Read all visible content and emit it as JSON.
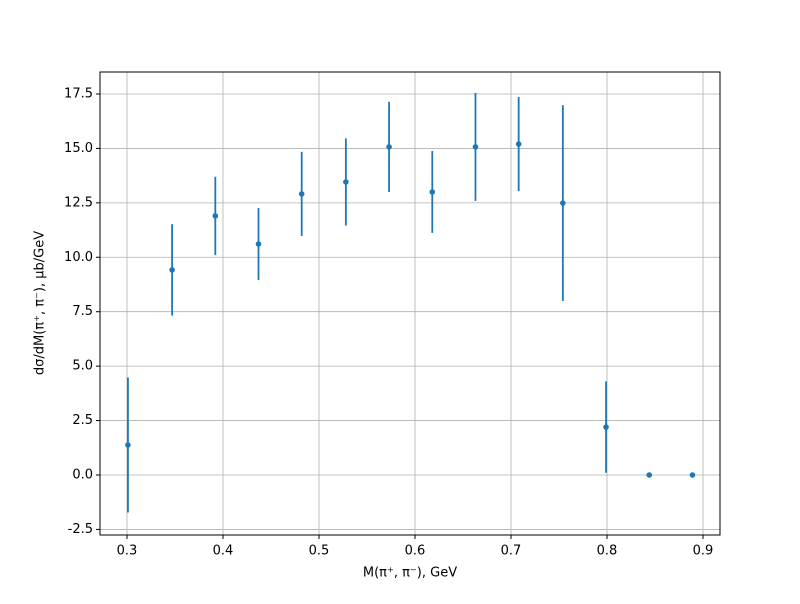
{
  "chart_data": {
    "type": "errorbar",
    "xlabel": "M(π⁺, π⁻), GeV",
    "ylabel": "dσ/dM(π⁺, π⁻), μb/GeV",
    "x": [
      0.301,
      0.347,
      0.392,
      0.437,
      0.482,
      0.528,
      0.573,
      0.618,
      0.663,
      0.708,
      0.754,
      0.799,
      0.844,
      0.889
    ],
    "values": [
      1.38,
      9.42,
      11.9,
      10.61,
      12.91,
      13.46,
      15.07,
      13.0,
      15.07,
      15.2,
      12.49,
      2.2,
      0,
      0
    ],
    "errors": [
      3.1,
      2.1,
      1.8,
      1.65,
      1.93,
      2.0,
      2.07,
      1.88,
      2.48,
      2.16,
      4.5,
      2.1,
      0,
      0
    ],
    "color": "#1f77b4",
    "xlim": [
      0.2719,
      0.9177
    ],
    "ylim": [
      -2.756,
      18.51
    ],
    "xticks": [
      0.3,
      0.4,
      0.5,
      0.6,
      0.7,
      0.8,
      0.9
    ],
    "yticks": [
      -2.5,
      {
        "value": 0,
        "label": "0.0"
      },
      2.5,
      {
        "value": 5,
        "label": "5.0"
      },
      7.5,
      {
        "value": 10,
        "label": "10.0"
      },
      12.5,
      {
        "value": 15,
        "label": "15.0"
      },
      17.5
    ],
    "grid": true
  }
}
